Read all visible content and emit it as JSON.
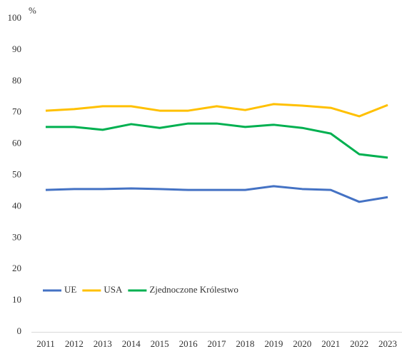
{
  "chart_data": {
    "type": "line",
    "y_label": "%",
    "categories": [
      "2011",
      "2012",
      "2013",
      "2014",
      "2015",
      "2016",
      "2017",
      "2018",
      "2019",
      "2020",
      "2021",
      "2022",
      "2023"
    ],
    "series": [
      {
        "name": "UE",
        "color": "#4472c4",
        "values": [
          45.3,
          45.6,
          45.6,
          45.8,
          45.6,
          45.3,
          45.3,
          45.3,
          46.5,
          45.6,
          45.3,
          41.5,
          43.0
        ]
      },
      {
        "name": "USA",
        "color": "#ffc000",
        "values": [
          70.6,
          71.1,
          72.0,
          72.0,
          70.6,
          70.6,
          72.0,
          70.8,
          72.7,
          72.2,
          71.5,
          68.8,
          72.4
        ]
      },
      {
        "name": "Zjednoczone Królestwo",
        "color": "#00b050",
        "values": [
          65.4,
          65.4,
          64.5,
          66.3,
          65.1,
          66.5,
          66.5,
          65.4,
          66.1,
          65.1,
          63.3,
          56.7,
          55.6
        ]
      }
    ],
    "ylim": [
      0,
      100
    ],
    "yticks": [
      0,
      10,
      20,
      30,
      40,
      50,
      60,
      70,
      80,
      90,
      100
    ],
    "grid": false,
    "legend": "lower left"
  }
}
